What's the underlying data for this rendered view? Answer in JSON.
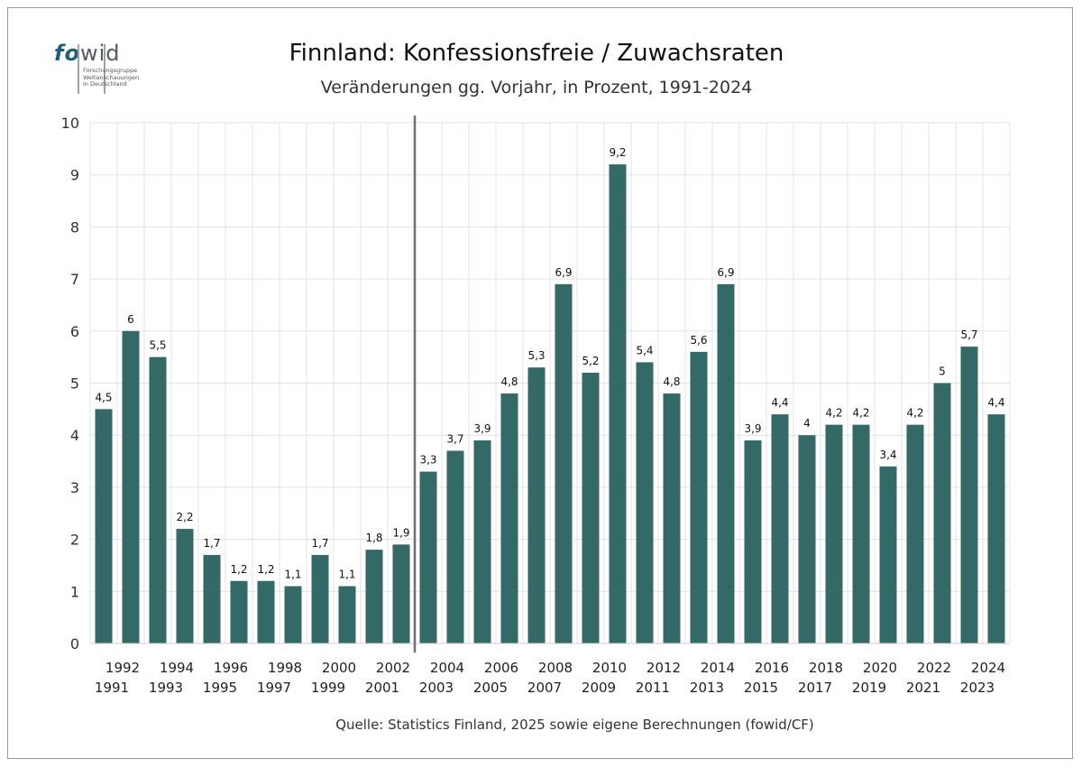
{
  "logo": {
    "brand_fo": "fo",
    "brand_wid": "wid",
    "tagline_1": "Forschungsgruppe",
    "tagline_2": "Weltanschauungen",
    "tagline_3": "in Deutschland"
  },
  "header": {
    "title": "Finnland: Konfessionsfreie / Zuwachsraten",
    "subtitle": "Veränderungen gg. Vorjahr, in Prozent, 1991-2024"
  },
  "footer": {
    "source": "Quelle: Statistics Finland, 2025 sowie eigene Berechnungen (fowid/CF)"
  },
  "colors": {
    "bar": "#336966",
    "grid": "#e3e3e3",
    "divider": "#707070"
  },
  "chart_data": {
    "type": "bar",
    "title": "Finnland: Konfessionsfreie / Zuwachsraten",
    "subtitle": "Veränderungen gg. Vorjahr, in Prozent, 1991-2024",
    "xlabel": "",
    "ylabel": "",
    "ylim": [
      0,
      10
    ],
    "yticks": [
      "0",
      "1",
      "2",
      "3",
      "4",
      "5",
      "6",
      "7",
      "8",
      "9",
      "10"
    ],
    "grid": true,
    "divider_after": "2002",
    "categories": [
      "1991",
      "1992",
      "1993",
      "1994",
      "1995",
      "1996",
      "1997",
      "1998",
      "1999",
      "2000",
      "2001",
      "2002",
      "2003",
      "2004",
      "2005",
      "2006",
      "2007",
      "2008",
      "2009",
      "2010",
      "2011",
      "2012",
      "2013",
      "2014",
      "2015",
      "2016",
      "2017",
      "2018",
      "2019",
      "2020",
      "2021",
      "2022",
      "2023",
      "2024"
    ],
    "values": [
      4.5,
      6,
      5.5,
      2.2,
      1.7,
      1.2,
      1.2,
      1.1,
      1.7,
      1.1,
      1.8,
      1.9,
      3.3,
      3.7,
      3.9,
      4.8,
      5.3,
      6.9,
      5.2,
      9.2,
      5.4,
      4.8,
      5.6,
      6.9,
      3.9,
      4.4,
      4,
      4.2,
      4.2,
      3.4,
      4.2,
      5,
      5.7,
      4.4
    ],
    "data_labels": [
      "4,5",
      "6",
      "5,5",
      "2,2",
      "1,7",
      "1,2",
      "1,2",
      "1,1",
      "1,7",
      "1,1",
      "1,8",
      "1,9",
      "3,3",
      "3,7",
      "3,9",
      "4,8",
      "5,3",
      "6,9",
      "5,2",
      "9,2",
      "5,4",
      "4,8",
      "5,6",
      "6,9",
      "3,9",
      "4,4",
      "4",
      "4,2",
      "4,2",
      "3,4",
      "4,2",
      "5",
      "5,7",
      "4,4"
    ]
  }
}
